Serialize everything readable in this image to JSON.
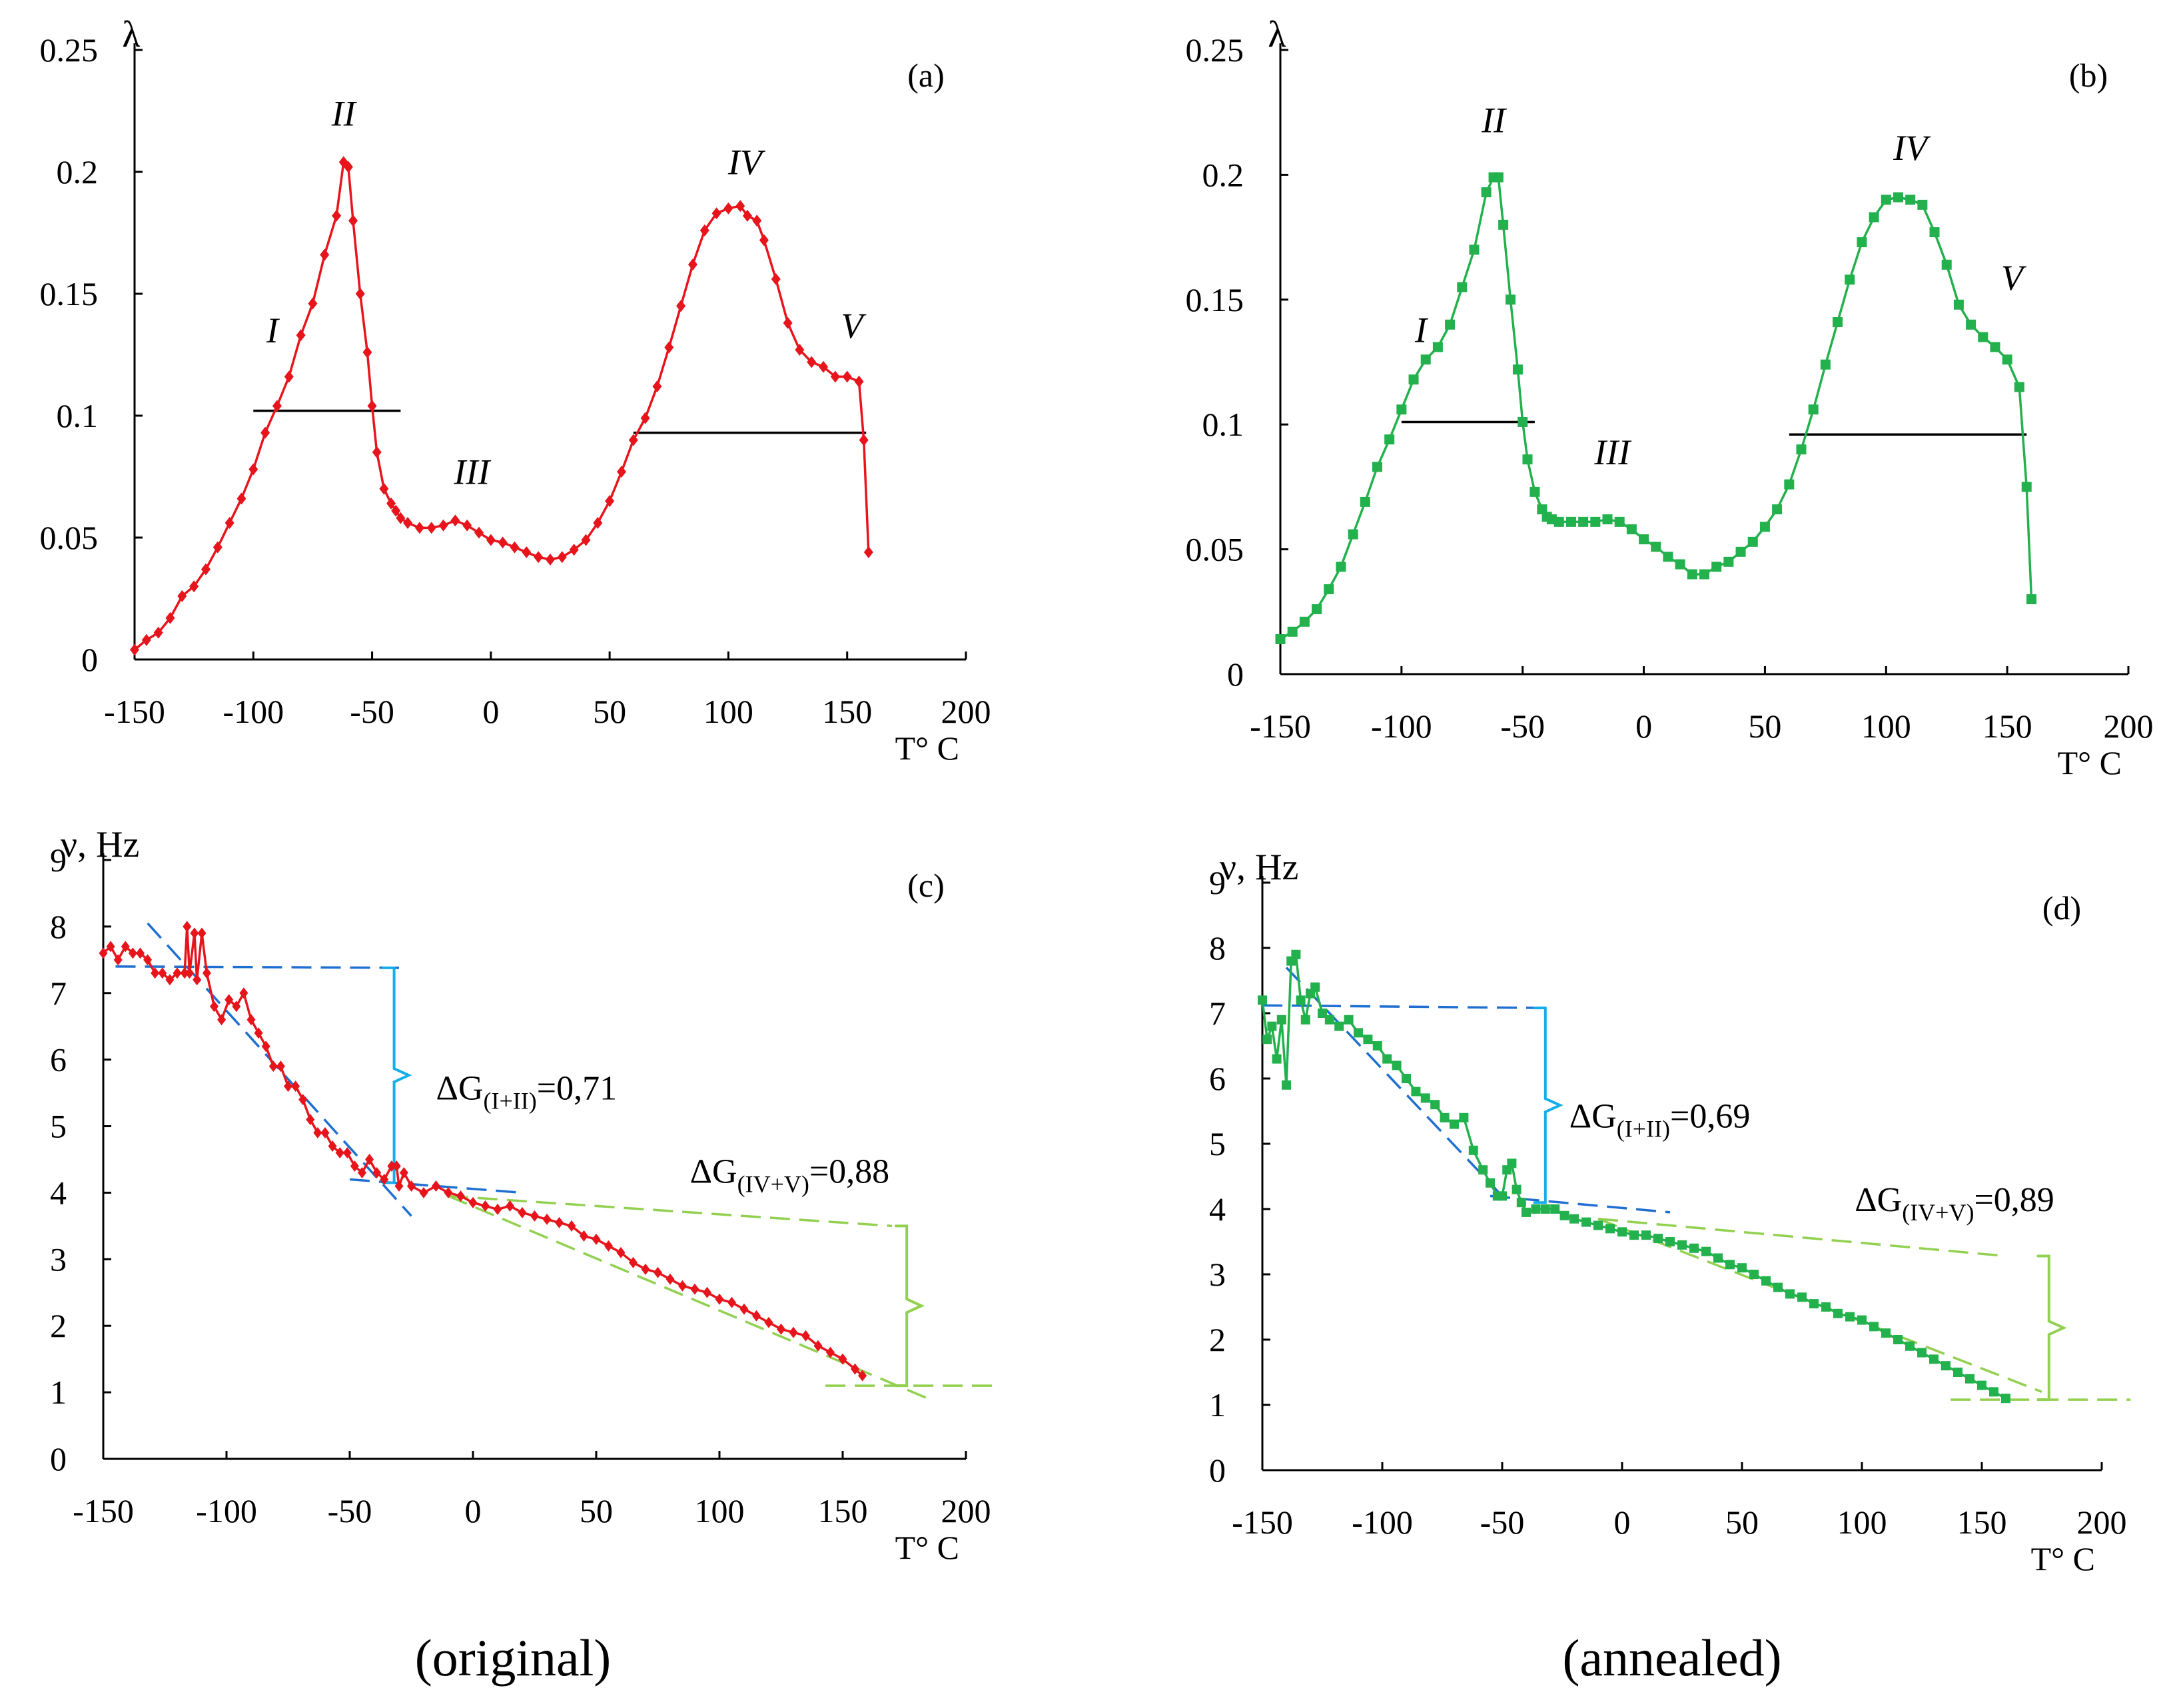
{
  "figure_captions": [
    "(original)",
    "(annealed)"
  ],
  "colors": {
    "red": "#e8141c",
    "green": "#22b14c",
    "blue_dash": "#1f6fd1",
    "cyan_bracket": "#15aee8",
    "lime": "#92d050",
    "axis": "#000000"
  },
  "chart_data": [
    {
      "id": "a",
      "type": "line",
      "panel_label": "(a)",
      "ylabel": "λ",
      "xlabel": "T° C",
      "xlim": [
        -150,
        200
      ],
      "ylim": [
        0,
        0.25
      ],
      "xticks": [
        -150,
        -100,
        -50,
        0,
        50,
        100,
        150,
        200
      ],
      "yticks": [
        0,
        0.05,
        0.1,
        0.15,
        0.2,
        0.25
      ],
      "xtick_labels": [
        "-150",
        "-100",
        "-50",
        "0",
        "50",
        "100",
        "150",
        "200"
      ],
      "ytick_labels": [
        "0",
        "0.05",
        "0.1",
        "0.15",
        "0.2",
        "0.25"
      ],
      "series": [
        {
          "name": "original",
          "color": "#e8141c",
          "marker": "diamond",
          "x": [
            -150,
            -145,
            -140,
            -135,
            -130,
            -125,
            -120,
            -115,
            -110,
            -105,
            -100,
            -95,
            -90,
            -85,
            -80,
            -75,
            -70,
            -65,
            -62,
            -60,
            -58,
            -55,
            -52,
            -50,
            -48,
            -45,
            -42,
            -40,
            -38,
            -35,
            -30,
            -25,
            -20,
            -15,
            -10,
            -5,
            0,
            5,
            10,
            15,
            20,
            25,
            30,
            35,
            40,
            45,
            50,
            55,
            60,
            65,
            70,
            75,
            80,
            85,
            90,
            95,
            100,
            105,
            108,
            112,
            115,
            120,
            125,
            130,
            135,
            140,
            145,
            150,
            155,
            157,
            159
          ],
          "y": [
            0.004,
            0.008,
            0.011,
            0.017,
            0.026,
            0.03,
            0.037,
            0.046,
            0.056,
            0.066,
            0.078,
            0.093,
            0.104,
            0.116,
            0.133,
            0.146,
            0.166,
            0.182,
            0.204,
            0.202,
            0.18,
            0.15,
            0.126,
            0.104,
            0.085,
            0.07,
            0.064,
            0.061,
            0.058,
            0.056,
            0.054,
            0.054,
            0.055,
            0.057,
            0.055,
            0.052,
            0.049,
            0.048,
            0.046,
            0.044,
            0.042,
            0.041,
            0.042,
            0.045,
            0.049,
            0.056,
            0.065,
            0.077,
            0.09,
            0.099,
            0.112,
            0.128,
            0.145,
            0.162,
            0.176,
            0.183,
            0.185,
            0.186,
            0.182,
            0.18,
            0.172,
            0.156,
            0.138,
            0.127,
            0.122,
            0.12,
            0.116,
            0.116,
            0.114,
            0.09,
            0.044
          ]
        }
      ],
      "hlines": [
        {
          "x": [
            -100,
            -38
          ],
          "y": 0.102
        },
        {
          "x": [
            60,
            158
          ],
          "y": 0.093
        }
      ],
      "annotations": [
        {
          "text": "I",
          "x": -92,
          "y": 0.13
        },
        {
          "text": "II",
          "x": -62,
          "y": 0.219
        },
        {
          "text": "III",
          "x": -8,
          "y": 0.072
        },
        {
          "text": "IV",
          "x": 107,
          "y": 0.199
        },
        {
          "text": "V",
          "x": 152,
          "y": 0.132
        }
      ]
    },
    {
      "id": "b",
      "type": "line",
      "panel_label": "(b)",
      "ylabel": "λ",
      "xlabel": "T° C",
      "xlim": [
        -150,
        200
      ],
      "ylim": [
        0,
        0.25
      ],
      "xticks": [
        -150,
        -100,
        -50,
        0,
        50,
        100,
        150,
        200
      ],
      "yticks": [
        0,
        0.05,
        0.1,
        0.15,
        0.2,
        0.25
      ],
      "xtick_labels": [
        "-150",
        "-100",
        "-50",
        "0",
        "50",
        "100",
        "150",
        "200"
      ],
      "ytick_labels": [
        "0",
        "0.05",
        "0.1",
        "0.15",
        "0.2",
        "0.25"
      ],
      "series": [
        {
          "name": "annealed",
          "color": "#22b14c",
          "marker": "square",
          "x": [
            -150,
            -145,
            -140,
            -135,
            -130,
            -125,
            -120,
            -115,
            -110,
            -105,
            -100,
            -95,
            -90,
            -85,
            -80,
            -75,
            -70,
            -65,
            -62,
            -60,
            -58,
            -55,
            -52,
            -50,
            -48,
            -45,
            -42,
            -40,
            -38,
            -35,
            -30,
            -25,
            -20,
            -15,
            -10,
            -5,
            0,
            5,
            10,
            15,
            20,
            25,
            30,
            35,
            40,
            45,
            50,
            55,
            60,
            65,
            70,
            75,
            80,
            85,
            90,
            95,
            100,
            105,
            110,
            115,
            120,
            125,
            130,
            135,
            140,
            145,
            150,
            155,
            158,
            160
          ],
          "y": [
            0.014,
            0.017,
            0.021,
            0.026,
            0.034,
            0.043,
            0.056,
            0.069,
            0.083,
            0.094,
            0.106,
            0.118,
            0.126,
            0.131,
            0.14,
            0.155,
            0.17,
            0.193,
            0.199,
            0.199,
            0.18,
            0.15,
            0.122,
            0.101,
            0.086,
            0.073,
            0.066,
            0.063,
            0.062,
            0.061,
            0.061,
            0.061,
            0.061,
            0.062,
            0.061,
            0.058,
            0.054,
            0.051,
            0.047,
            0.044,
            0.04,
            0.04,
            0.043,
            0.045,
            0.049,
            0.053,
            0.059,
            0.066,
            0.076,
            0.09,
            0.106,
            0.124,
            0.141,
            0.158,
            0.173,
            0.183,
            0.19,
            0.191,
            0.19,
            0.188,
            0.177,
            0.164,
            0.148,
            0.14,
            0.135,
            0.131,
            0.126,
            0.115,
            0.075,
            0.03
          ]
        }
      ],
      "hlines": [
        {
          "x": [
            -100,
            -45
          ],
          "y": 0.101
        },
        {
          "x": [
            60,
            158
          ],
          "y": 0.096
        }
      ],
      "annotations": [
        {
          "text": "I",
          "x": -92,
          "y": 0.133
        },
        {
          "text": "II",
          "x": -62,
          "y": 0.217
        },
        {
          "text": "III",
          "x": -13,
          "y": 0.084
        },
        {
          "text": "IV",
          "x": 110,
          "y": 0.206
        },
        {
          "text": "V",
          "x": 152,
          "y": 0.154
        }
      ]
    },
    {
      "id": "c",
      "type": "line",
      "panel_label": "(c)",
      "ylabel": "ν, Hz",
      "xlabel": "T° C",
      "xlim": [
        -150,
        200
      ],
      "ylim": [
        0,
        9
      ],
      "xticks": [
        -150,
        -100,
        -50,
        0,
        50,
        100,
        150,
        200
      ],
      "yticks": [
        0,
        1,
        2,
        3,
        4,
        5,
        6,
        7,
        8,
        9
      ],
      "xtick_labels": [
        "-150",
        "-100",
        "-50",
        "0",
        "50",
        "100",
        "150",
        "200"
      ],
      "ytick_labels": [
        "0",
        "1",
        "2",
        "3",
        "4",
        "5",
        "6",
        "7",
        "8",
        "9"
      ],
      "series": [
        {
          "name": "original",
          "color": "#e8141c",
          "marker": "diamond",
          "x": [
            -150,
            -147,
            -144,
            -141,
            -138,
            -135,
            -132,
            -129,
            -126,
            -123,
            -120,
            -117,
            -116,
            -115,
            -113,
            -112,
            -110,
            -108,
            -105,
            -102,
            -99,
            -96,
            -93,
            -90,
            -87,
            -84,
            -81,
            -78,
            -75,
            -72,
            -69,
            -66,
            -63,
            -60,
            -57,
            -54,
            -51,
            -48,
            -45,
            -42,
            -39,
            -36,
            -33,
            -31,
            -30,
            -28,
            -25,
            -20,
            -15,
            -10,
            -5,
            0,
            5,
            10,
            15,
            20,
            25,
            30,
            35,
            40,
            45,
            50,
            55,
            60,
            65,
            70,
            75,
            80,
            85,
            90,
            95,
            100,
            105,
            110,
            115,
            120,
            125,
            130,
            135,
            140,
            145,
            150,
            155,
            158
          ],
          "y": [
            7.6,
            7.7,
            7.5,
            7.7,
            7.6,
            7.6,
            7.5,
            7.3,
            7.3,
            7.2,
            7.3,
            7.3,
            8.0,
            7.3,
            7.9,
            7.2,
            7.9,
            7.3,
            6.8,
            6.6,
            6.9,
            6.8,
            7.0,
            6.6,
            6.4,
            6.2,
            5.9,
            5.9,
            5.6,
            5.6,
            5.4,
            5.1,
            4.9,
            4.9,
            4.7,
            4.6,
            4.6,
            4.4,
            4.3,
            4.5,
            4.3,
            4.2,
            4.4,
            4.4,
            4.1,
            4.3,
            4.1,
            4.0,
            4.1,
            4.0,
            3.95,
            3.85,
            3.8,
            3.75,
            3.8,
            3.7,
            3.65,
            3.6,
            3.55,
            3.5,
            3.35,
            3.3,
            3.2,
            3.1,
            2.95,
            2.85,
            2.8,
            2.7,
            2.6,
            2.55,
            2.5,
            2.4,
            2.35,
            2.25,
            2.15,
            2.05,
            1.95,
            1.9,
            1.85,
            1.7,
            1.6,
            1.5,
            1.35,
            1.25
          ]
        }
      ],
      "dashed_lines": [
        {
          "color": "#1f6fd1",
          "x": [
            -145,
            -30
          ],
          "y": [
            7.4,
            7.38
          ]
        },
        {
          "color": "#1f6fd1",
          "x": [
            -132,
            -25
          ],
          "y": [
            8.05,
            3.65
          ]
        },
        {
          "color": "#1f6fd1",
          "x": [
            -50,
            20
          ],
          "y": [
            4.2,
            4.0
          ]
        },
        {
          "color": "#92d050",
          "x": [
            -10,
            170
          ],
          "y": [
            3.95,
            3.5
          ]
        },
        {
          "color": "#92d050",
          "x": [
            -10,
            185
          ],
          "y": [
            3.95,
            0.9
          ]
        },
        {
          "color": "#92d050",
          "x": [
            143,
            213
          ],
          "y": [
            1.1,
            1.1
          ]
        }
      ],
      "brackets": [
        {
          "color": "#15aee8",
          "x": -32,
          "y_top": 7.38,
          "y_bottom": 4.15,
          "label": "ΔG(I+II)=0,71"
        },
        {
          "color": "#92d050",
          "x": 176,
          "y_top": 3.5,
          "y_bottom": 1.1,
          "label": "ΔG(IV+V)=0,88"
        }
      ],
      "dg_labels": [
        {
          "prefix": "ΔG",
          "sub": "(I+II)",
          "suffix": "=0,71",
          "x": -15,
          "y": 5.4
        },
        {
          "prefix": "ΔG",
          "sub": "(IV+V)",
          "suffix": "=0,88",
          "x": 88,
          "y": 4.15
        }
      ]
    },
    {
      "id": "d",
      "type": "line",
      "panel_label": "(d)",
      "ylabel": "ν, Hz",
      "xlabel": "T° C",
      "xlim": [
        -150,
        200
      ],
      "ylim": [
        0,
        9
      ],
      "xticks": [
        -150,
        -100,
        -50,
        0,
        50,
        100,
        150,
        200
      ],
      "yticks": [
        0,
        1,
        2,
        3,
        4,
        5,
        6,
        7,
        8,
        9
      ],
      "xtick_labels": [
        "-150",
        "-100",
        "-50",
        "0",
        "50",
        "100",
        "150",
        "200"
      ],
      "ytick_labels": [
        "0",
        "1",
        "2",
        "3",
        "4",
        "5",
        "6",
        "7",
        "8",
        "9"
      ],
      "series": [
        {
          "name": "annealed",
          "color": "#22b14c",
          "marker": "square",
          "x": [
            -150,
            -148,
            -146,
            -144,
            -142,
            -140,
            -138,
            -136,
            -134,
            -132,
            -130,
            -128,
            -125,
            -122,
            -118,
            -114,
            -110,
            -106,
            -102,
            -98,
            -94,
            -90,
            -86,
            -82,
            -78,
            -74,
            -70,
            -66,
            -62,
            -58,
            -55,
            -52,
            -50,
            -48,
            -46,
            -44,
            -42,
            -40,
            -36,
            -32,
            -28,
            -24,
            -20,
            -15,
            -10,
            -5,
            0,
            5,
            10,
            15,
            20,
            25,
            30,
            35,
            40,
            45,
            50,
            55,
            60,
            65,
            70,
            75,
            80,
            85,
            90,
            95,
            100,
            105,
            110,
            115,
            120,
            125,
            130,
            135,
            140,
            145,
            150,
            155,
            160
          ],
          "y": [
            7.2,
            6.6,
            6.8,
            6.3,
            6.9,
            5.9,
            7.8,
            7.9,
            7.2,
            6.9,
            7.3,
            7.4,
            7.0,
            6.9,
            6.8,
            6.9,
            6.7,
            6.6,
            6.5,
            6.3,
            6.2,
            6.0,
            5.8,
            5.7,
            5.6,
            5.4,
            5.3,
            5.4,
            4.9,
            4.6,
            4.4,
            4.2,
            4.2,
            4.6,
            4.7,
            4.3,
            4.1,
            3.95,
            4.0,
            4.0,
            4.0,
            3.9,
            3.85,
            3.8,
            3.75,
            3.7,
            3.65,
            3.6,
            3.6,
            3.55,
            3.5,
            3.45,
            3.4,
            3.35,
            3.25,
            3.15,
            3.1,
            3.0,
            2.9,
            2.8,
            2.7,
            2.65,
            2.55,
            2.5,
            2.4,
            2.35,
            2.3,
            2.2,
            2.1,
            2.0,
            1.9,
            1.8,
            1.7,
            1.6,
            1.5,
            1.4,
            1.3,
            1.2,
            1.1
          ]
        }
      ],
      "dashed_lines": [
        {
          "color": "#1f6fd1",
          "x": [
            -150,
            -32
          ],
          "y": [
            7.12,
            7.08
          ]
        },
        {
          "color": "#1f6fd1",
          "x": [
            -140,
            -50
          ],
          "y": [
            7.7,
            4.2
          ]
        },
        {
          "color": "#1f6fd1",
          "x": [
            -55,
            20
          ],
          "y": [
            4.2,
            3.95
          ]
        },
        {
          "color": "#92d050",
          "x": [
            -10,
            160
          ],
          "y": [
            3.85,
            3.28
          ]
        },
        {
          "color": "#92d050",
          "x": [
            -10,
            175
          ],
          "y": [
            3.85,
            1.2
          ]
        },
        {
          "color": "#92d050",
          "x": [
            137,
            212
          ],
          "y": [
            1.08,
            1.08
          ]
        }
      ],
      "brackets": [
        {
          "color": "#15aee8",
          "x": -32,
          "y_top": 7.08,
          "y_bottom": 4.1,
          "label": "ΔG(I+II)=0,69"
        },
        {
          "color": "#92d050",
          "x": 178,
          "y_top": 3.28,
          "y_bottom": 1.08,
          "label": "ΔG(IV+V)=0,89"
        }
      ],
      "dg_labels": [
        {
          "prefix": "ΔG",
          "sub": "(I+II)",
          "suffix": "=0,69",
          "x": -22,
          "y": 5.25
        },
        {
          "prefix": "ΔG",
          "sub": "(IV+V)",
          "suffix": "=0,89",
          "x": 97,
          "y": 3.97
        }
      ]
    }
  ]
}
